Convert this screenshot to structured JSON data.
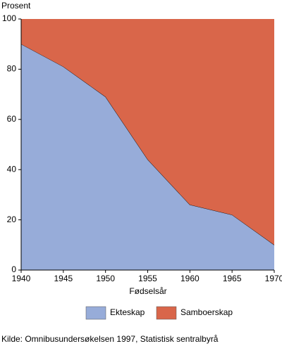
{
  "chart_data": {
    "type": "stacked_area",
    "y_label": "Prosent",
    "x_label": "Fødselsår",
    "source": "Kilde: Omnibusundersøkelsen 1997, Statistisk sentralbyrå",
    "x": [
      1940,
      1945,
      1950,
      1955,
      1960,
      1965,
      1970
    ],
    "series": [
      {
        "name": "Ekteskap",
        "color": "#97acd9",
        "values": [
          90,
          81,
          69,
          44,
          26,
          22,
          10
        ]
      },
      {
        "name": "Samboerskap",
        "color": "#d9664a",
        "values": [
          10,
          19,
          31,
          56,
          74,
          78,
          90
        ]
      }
    ],
    "xlim": [
      1940,
      1970
    ],
    "xticks": [
      1940,
      1945,
      1950,
      1955,
      1960,
      1965,
      1970
    ],
    "ylim": [
      0,
      100
    ],
    "yticks": [
      0,
      20,
      40,
      60,
      80,
      100
    ],
    "grid": false
  }
}
